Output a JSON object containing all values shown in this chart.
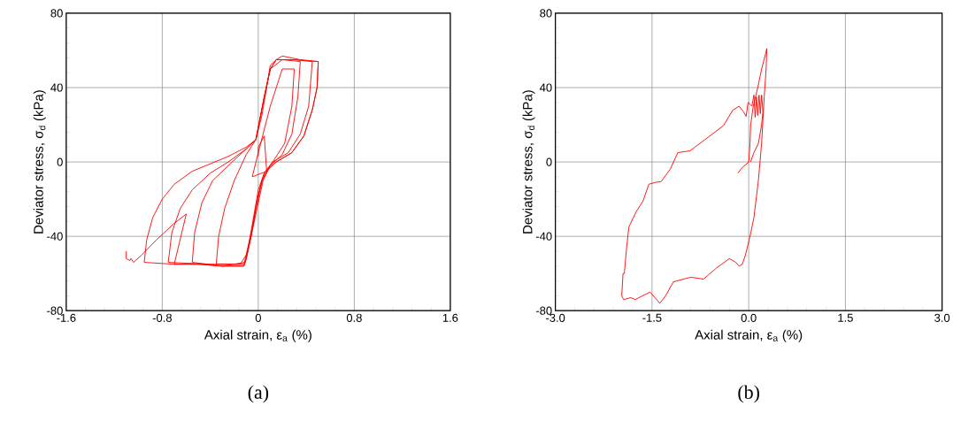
{
  "chart_data": [
    {
      "type": "line",
      "xlabel": "Axial strain, ε$_{a}$ (%)",
      "ylabel": "Deviator stress, σ$_{d}$ (kPa)",
      "annotations": [
        "(a)"
      ],
      "xlim": [
        -1.6,
        1.6
      ],
      "ylim": [
        -80,
        80
      ],
      "xticks": [
        -1.6,
        -0.8,
        0,
        0.8,
        1.6
      ],
      "yticks": [
        -80,
        -40,
        0,
        40,
        80
      ],
      "grid": true,
      "marker": "none",
      "line_style": "solid",
      "series": [
        {
          "color": "#ff0000",
          "x": [
            0.0,
            0.0,
            0.05,
            0.07,
            -0.05,
            0.0,
            0.1,
            0.2,
            0.3,
            0.28,
            0.22,
            0.12,
            0.05,
            0.0,
            -0.04,
            -0.08,
            -0.12,
            -0.35,
            -0.33,
            -0.28,
            -0.2,
            -0.1,
            -0.02,
            0.05,
            0.1,
            0.2,
            0.35,
            0.33,
            0.28,
            0.2,
            0.1,
            0.04,
            -0.01,
            -0.06,
            -0.11,
            -0.3,
            -0.55,
            -0.53,
            -0.47,
            -0.38,
            -0.25,
            -0.1,
            -0.02,
            0.05,
            0.1,
            0.15,
            0.3,
            0.45,
            0.42,
            0.35,
            0.25,
            0.12,
            0.05,
            0.0,
            -0.05,
            -0.1,
            -0.15,
            -0.4,
            -0.75,
            -0.72,
            -0.65,
            -0.55,
            -0.4,
            -0.25,
            -0.1,
            -0.02,
            0.05,
            0.1,
            0.15,
            0.3,
            0.5,
            0.49,
            0.45,
            0.38,
            0.28,
            0.15,
            0.08,
            0.03,
            -0.02,
            -0.06,
            -0.1,
            -0.12,
            -0.3,
            -0.5,
            -0.7,
            -0.95,
            -0.93,
            -0.88,
            -0.8,
            -0.7,
            -0.55,
            -0.4,
            -0.25,
            -0.1,
            -0.02,
            0.03,
            0.07,
            0.1,
            0.15,
            0.2,
            0.35,
            0.5,
            0.49,
            0.45,
            0.38,
            0.28,
            0.15,
            0.08,
            0.03,
            -0.02,
            -0.06,
            -0.1,
            -0.12,
            -0.3,
            -0.5,
            -0.7,
            -0.6,
            -0.7,
            -0.85,
            -0.97,
            -1.04,
            -1.06,
            -1.07,
            -1.1,
            -1.1
          ],
          "values": [
            3,
            8,
            14,
            -5,
            -8,
            5,
            30,
            50,
            50,
            30,
            10,
            0,
            -6,
            -15,
            -30,
            -45,
            -55,
            -55,
            -40,
            -25,
            -10,
            4,
            12,
            35,
            50,
            55,
            54,
            35,
            15,
            4,
            -2,
            -10,
            -25,
            -40,
            -54,
            -56,
            -54,
            -38,
            -22,
            -10,
            -2,
            7,
            12,
            35,
            50,
            55,
            55,
            54,
            30,
            15,
            5,
            0,
            -6,
            -18,
            -35,
            -50,
            -55,
            -55,
            -54,
            -38,
            -25,
            -15,
            -6,
            0,
            7,
            12,
            35,
            50,
            55,
            55,
            54,
            40,
            28,
            14,
            5,
            0,
            -4,
            -10,
            -25,
            -40,
            -52,
            -56,
            -56,
            -55,
            -55,
            -54,
            -42,
            -30,
            -20,
            -12,
            -5,
            -1,
            3,
            8,
            12,
            25,
            40,
            52,
            55,
            57,
            55,
            54,
            40,
            28,
            14,
            5,
            0,
            -4,
            -10,
            -25,
            -40,
            -52,
            -56,
            -56,
            -55,
            -55,
            -28,
            -33,
            -42,
            -50,
            -54,
            -52,
            -53,
            -52,
            -48
          ]
        }
      ]
    },
    {
      "type": "line",
      "xlabel": "Axial strain, ε$_{a}$ (%)",
      "ylabel": "Deviator stress, σ$_{d}$ (kPa)",
      "annotations": [
        "(b)"
      ],
      "xlim": [
        -3.0,
        3.0
      ],
      "ylim": [
        -80,
        80
      ],
      "xticks": [
        {
          "value": -3.0,
          "label": "-3.0"
        },
        {
          "value": -1.5,
          "label": "-1.5"
        },
        {
          "value": 0.0,
          "label": "0.0"
        },
        {
          "value": 1.5,
          "label": "1.5"
        },
        {
          "value": 3.0,
          "label": "3.0"
        }
      ],
      "yticks": [
        -80,
        -40,
        0,
        40,
        80
      ],
      "grid": true,
      "marker": "none",
      "line_style": "solid",
      "series": [
        {
          "color": "#ff0000",
          "x": [
            -0.17,
            -0.1,
            0.0,
            0.02,
            0.03,
            0.07,
            0.14,
            0.2,
            0.26,
            0.28,
            0.27,
            0.24,
            0.2,
            0.15,
            0.08,
            0.02,
            -0.05,
            -0.1,
            -0.15,
            -0.2,
            -0.3,
            -0.5,
            -0.7,
            -0.9,
            -1.17,
            -1.29,
            -1.38,
            -1.53,
            -1.65,
            -1.76,
            -1.83,
            -1.94,
            -1.97,
            -1.95,
            -1.93,
            -1.9,
            -1.86,
            -1.75,
            -1.64,
            -1.55,
            -1.45,
            -1.36,
            -1.22,
            -1.1,
            -0.91,
            -0.68,
            -0.39,
            -0.25,
            -0.15,
            -0.08,
            -0.04,
            -0.01,
            0.05,
            0.08,
            0.1,
            0.12,
            0.14,
            0.16,
            0.18,
            0.2,
            0.22,
            0.2,
            0.15,
            0.08,
            0.03
          ],
          "values": [
            -6,
            -3,
            0,
            10,
            20,
            30,
            40,
            50,
            58,
            61,
            50,
            35,
            10,
            -10,
            -30,
            -40,
            -50,
            -55,
            -56,
            -54,
            -52,
            -57,
            -63,
            -62,
            -64.5,
            -72,
            -76,
            -70,
            -72,
            -74,
            -73,
            -74,
            -72,
            -60,
            -60,
            -48,
            -35,
            -27,
            -21,
            -12,
            -11,
            -10.6,
            -4,
            5,
            6,
            12,
            19.6,
            27.8,
            30,
            27,
            24.5,
            32,
            30,
            36,
            24,
            35,
            25,
            36,
            26,
            36,
            27,
            20,
            10,
            5,
            0
          ]
        }
      ]
    }
  ]
}
